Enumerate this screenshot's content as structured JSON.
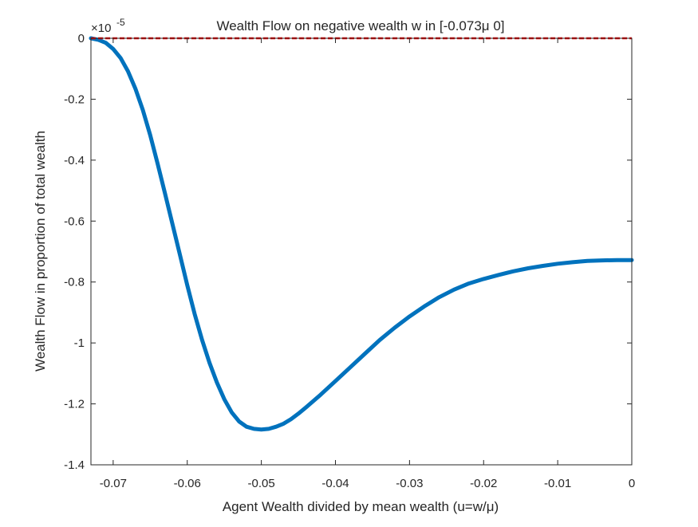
{
  "chart_data": {
    "type": "line",
    "title": "Wealth Flow on negative wealth w in [-0.073μ 0]",
    "xlabel": "Agent Wealth divided by mean wealth (u=w/μ)",
    "ylabel": "Wealth Flow in proportion of total wealth",
    "y_exponent_label": "×10",
    "y_exponent_power": "-5",
    "xlim": [
      -0.073,
      0
    ],
    "ylim": [
      -1.4,
      0
    ],
    "xticks": [
      -0.07,
      -0.06,
      -0.05,
      -0.04,
      -0.03,
      -0.02,
      -0.01,
      0
    ],
    "xtick_labels": [
      "-0.07",
      "-0.06",
      "-0.05",
      "-0.04",
      "-0.03",
      "-0.02",
      "-0.01",
      "0"
    ],
    "yticks": [
      0,
      -0.2,
      -0.4,
      -0.6,
      -0.8,
      -1,
      -1.2,
      -1.4
    ],
    "ytick_labels": [
      "0",
      "-0.2",
      "-0.4",
      "-0.6",
      "-0.8",
      "-1",
      "-1.2",
      "-1.4"
    ],
    "grid": false,
    "series": [
      {
        "color": "#0072BD",
        "style": "solid",
        "x": [
          -0.073,
          -0.072,
          -0.071,
          -0.07,
          -0.069,
          -0.068,
          -0.067,
          -0.066,
          -0.065,
          -0.064,
          -0.063,
          -0.062,
          -0.061,
          -0.06,
          -0.059,
          -0.058,
          -0.057,
          -0.056,
          -0.055,
          -0.054,
          -0.053,
          -0.052,
          -0.051,
          -0.05,
          -0.049,
          -0.048,
          -0.047,
          -0.046,
          -0.045,
          -0.044,
          -0.042,
          -0.04,
          -0.038,
          -0.036,
          -0.034,
          -0.032,
          -0.03,
          -0.028,
          -0.026,
          -0.024,
          -0.022,
          -0.02,
          -0.018,
          -0.016,
          -0.014,
          -0.012,
          -0.01,
          -0.008,
          -0.006,
          -0.004,
          -0.002,
          0
        ],
        "y": [
          0,
          -0.005,
          -0.015,
          -0.035,
          -0.065,
          -0.108,
          -0.165,
          -0.235,
          -0.318,
          -0.412,
          -0.51,
          -0.61,
          -0.71,
          -0.81,
          -0.905,
          -0.99,
          -1.065,
          -1.13,
          -1.185,
          -1.228,
          -1.258,
          -1.275,
          -1.282,
          -1.284,
          -1.282,
          -1.275,
          -1.265,
          -1.25,
          -1.232,
          -1.212,
          -1.17,
          -1.125,
          -1.08,
          -1.035,
          -0.99,
          -0.95,
          -0.913,
          -0.88,
          -0.85,
          -0.825,
          -0.805,
          -0.79,
          -0.777,
          -0.765,
          -0.755,
          -0.747,
          -0.74,
          -0.735,
          -0.731,
          -0.729,
          -0.728,
          -0.728
        ]
      },
      {
        "color": "#FF0000",
        "style": "dashed",
        "x": [
          -0.073,
          0
        ],
        "y": [
          0,
          0
        ]
      }
    ]
  }
}
